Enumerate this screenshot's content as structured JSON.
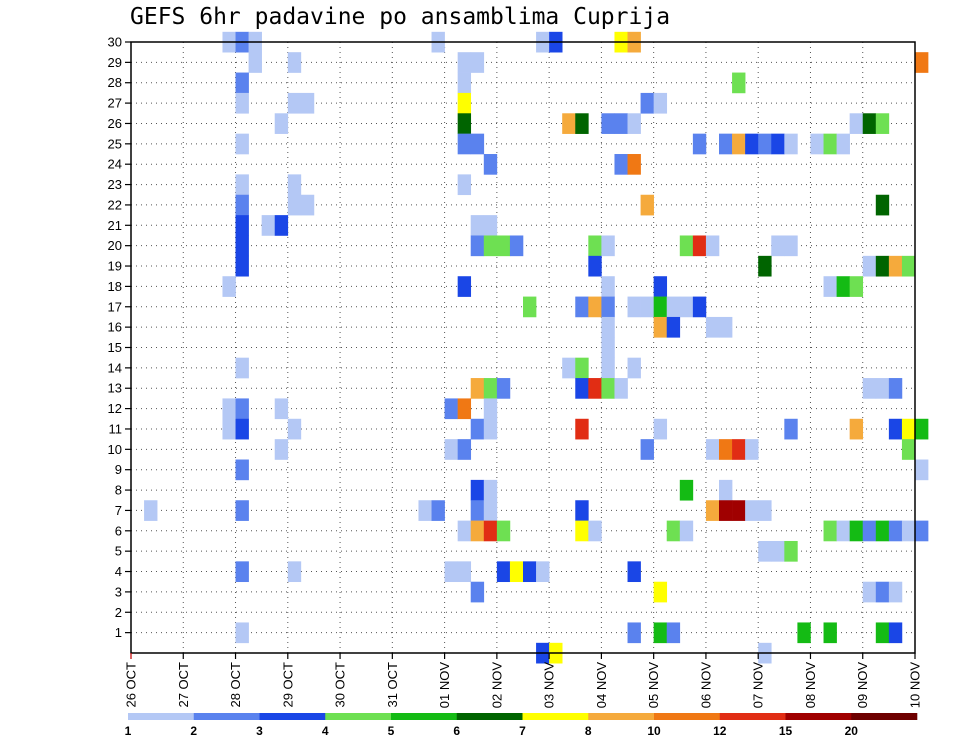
{
  "title": "GEFS 6hr padavine po ansamblima Cuprija",
  "chart_data": {
    "type": "heatmap",
    "title": "GEFS 6hr padavine po ansamblima Cuprija",
    "xlabel": "",
    "ylabel": "",
    "x_ticks": [
      "26 OCT",
      "27 OCT",
      "28 OCT",
      "29 OCT",
      "30 OCT",
      "31 OCT",
      "01 NOV",
      "02 NOV",
      "03 NOV",
      "04 NOV",
      "05 NOV",
      "06 NOV",
      "07 NOV",
      "08 NOV",
      "09 NOV",
      "10 NOV"
    ],
    "y_ticks": [
      "1",
      "2",
      "3",
      "4",
      "5",
      "6",
      "7",
      "8",
      "9",
      "10",
      "11",
      "12",
      "13",
      "14",
      "15",
      "16",
      "17",
      "18",
      "19",
      "20",
      "21",
      "22",
      "23",
      "24",
      "25",
      "26",
      "27",
      "28",
      "29",
      "30"
    ],
    "ylim": [
      0,
      30
    ],
    "colorbar": {
      "labels": [
        "1",
        "2",
        "3",
        "4",
        "5",
        "6",
        "7",
        "8",
        "10",
        "12",
        "15",
        "20"
      ],
      "colors": [
        "#b4c8f5",
        "#5a82ee",
        "#1a46e6",
        "#6ee052",
        "#14bb14",
        "#006400",
        "#ffff00",
        "#f5aa3c",
        "#f07814",
        "#e12d14",
        "#a00000",
        "#6e0000"
      ]
    },
    "cells": [
      [
        30,
        7,
        0
      ],
      [
        30,
        8,
        1
      ],
      [
        30,
        9,
        0
      ],
      [
        30,
        23,
        0
      ],
      [
        30,
        31,
        0
      ],
      [
        30,
        32,
        2
      ],
      [
        30,
        37,
        6
      ],
      [
        30,
        38,
        7
      ],
      [
        29,
        9,
        0
      ],
      [
        29,
        12,
        0
      ],
      [
        29,
        25,
        0
      ],
      [
        29,
        26,
        0
      ],
      [
        29,
        60,
        8
      ],
      [
        28,
        8,
        1
      ],
      [
        28,
        25,
        0
      ],
      [
        28,
        46,
        3
      ],
      [
        27,
        8,
        0
      ],
      [
        27,
        12,
        0
      ],
      [
        27,
        13,
        0
      ],
      [
        27,
        25,
        6
      ],
      [
        27,
        39,
        1
      ],
      [
        27,
        40,
        0
      ],
      [
        26,
        11,
        0
      ],
      [
        26,
        25,
        5
      ],
      [
        26,
        33,
        7
      ],
      [
        26,
        34,
        5
      ],
      [
        26,
        36,
        1
      ],
      [
        26,
        37,
        1
      ],
      [
        26,
        38,
        0
      ],
      [
        26,
        55,
        0
      ],
      [
        26,
        56,
        5
      ],
      [
        26,
        57,
        3
      ],
      [
        25,
        8,
        0
      ],
      [
        25,
        25,
        1
      ],
      [
        25,
        26,
        1
      ],
      [
        25,
        43,
        1
      ],
      [
        25,
        45,
        1
      ],
      [
        25,
        46,
        7
      ],
      [
        25,
        47,
        2
      ],
      [
        25,
        48,
        1
      ],
      [
        25,
        49,
        2
      ],
      [
        25,
        50,
        0
      ],
      [
        25,
        52,
        0
      ],
      [
        25,
        53,
        3
      ],
      [
        25,
        54,
        0
      ],
      [
        24,
        27,
        1
      ],
      [
        24,
        37,
        1
      ],
      [
        24,
        38,
        8
      ],
      [
        23,
        8,
        0
      ],
      [
        23,
        12,
        0
      ],
      [
        23,
        25,
        0
      ],
      [
        22,
        8,
        1
      ],
      [
        22,
        12,
        0
      ],
      [
        22,
        13,
        0
      ],
      [
        22,
        39,
        7
      ],
      [
        22,
        57,
        5
      ],
      [
        21,
        8,
        2
      ],
      [
        21,
        10,
        0
      ],
      [
        21,
        11,
        2
      ],
      [
        21,
        26,
        0
      ],
      [
        21,
        27,
        0
      ],
      [
        20,
        8,
        2
      ],
      [
        20,
        26,
        1
      ],
      [
        20,
        27,
        3
      ],
      [
        20,
        28,
        3
      ],
      [
        20,
        29,
        1
      ],
      [
        20,
        35,
        3
      ],
      [
        20,
        36,
        0
      ],
      [
        20,
        42,
        3
      ],
      [
        20,
        43,
        9
      ],
      [
        20,
        44,
        0
      ],
      [
        20,
        49,
        0
      ],
      [
        20,
        50,
        0
      ],
      [
        19,
        8,
        2
      ],
      [
        19,
        35,
        2
      ],
      [
        19,
        48,
        5
      ],
      [
        19,
        56,
        0
      ],
      [
        19,
        57,
        5
      ],
      [
        19,
        58,
        7
      ],
      [
        19,
        59,
        3
      ],
      [
        18,
        7,
        0
      ],
      [
        18,
        25,
        2
      ],
      [
        18,
        36,
        0
      ],
      [
        18,
        40,
        2
      ],
      [
        18,
        53,
        0
      ],
      [
        18,
        54,
        4
      ],
      [
        18,
        55,
        3
      ],
      [
        17,
        30,
        3
      ],
      [
        17,
        34,
        1
      ],
      [
        17,
        35,
        7
      ],
      [
        17,
        36,
        1
      ],
      [
        17,
        38,
        0
      ],
      [
        17,
        39,
        0
      ],
      [
        17,
        40,
        4
      ],
      [
        17,
        41,
        0
      ],
      [
        17,
        42,
        0
      ],
      [
        17,
        43,
        2
      ],
      [
        16,
        36,
        0
      ],
      [
        16,
        40,
        7
      ],
      [
        16,
        41,
        2
      ],
      [
        16,
        44,
        0
      ],
      [
        16,
        45,
        0
      ],
      [
        15,
        36,
        0
      ],
      [
        14,
        8,
        0
      ],
      [
        14,
        33,
        0
      ],
      [
        14,
        34,
        3
      ],
      [
        14,
        36,
        0
      ],
      [
        14,
        38,
        0
      ],
      [
        13,
        26,
        7
      ],
      [
        13,
        27,
        3
      ],
      [
        13,
        28,
        1
      ],
      [
        13,
        34,
        2
      ],
      [
        13,
        35,
        9
      ],
      [
        13,
        36,
        3
      ],
      [
        13,
        37,
        0
      ],
      [
        13,
        56,
        0
      ],
      [
        13,
        57,
        0
      ],
      [
        13,
        58,
        1
      ],
      [
        12,
        7,
        0
      ],
      [
        12,
        8,
        1
      ],
      [
        12,
        11,
        0
      ],
      [
        12,
        24,
        1
      ],
      [
        12,
        25,
        8
      ],
      [
        12,
        27,
        0
      ],
      [
        11,
        7,
        0
      ],
      [
        11,
        8,
        2
      ],
      [
        11,
        12,
        0
      ],
      [
        11,
        26,
        1
      ],
      [
        11,
        27,
        0
      ],
      [
        11,
        34,
        9
      ],
      [
        11,
        40,
        0
      ],
      [
        11,
        50,
        1
      ],
      [
        11,
        55,
        7
      ],
      [
        11,
        58,
        2
      ],
      [
        11,
        59,
        6
      ],
      [
        11,
        60,
        4
      ],
      [
        10,
        11,
        0
      ],
      [
        10,
        24,
        0
      ],
      [
        10,
        25,
        1
      ],
      [
        10,
        39,
        1
      ],
      [
        10,
        44,
        0
      ],
      [
        10,
        45,
        8
      ],
      [
        10,
        46,
        9
      ],
      [
        10,
        47,
        0
      ],
      [
        10,
        59,
        3
      ],
      [
        9,
        8,
        1
      ],
      [
        9,
        60,
        0
      ],
      [
        8,
        26,
        2
      ],
      [
        8,
        27,
        0
      ],
      [
        8,
        42,
        4
      ],
      [
        8,
        45,
        0
      ],
      [
        7,
        1,
        0
      ],
      [
        7,
        8,
        1
      ],
      [
        7,
        22,
        0
      ],
      [
        7,
        23,
        1
      ],
      [
        7,
        26,
        1
      ],
      [
        7,
        27,
        0
      ],
      [
        7,
        34,
        2
      ],
      [
        7,
        44,
        7
      ],
      [
        7,
        45,
        10
      ],
      [
        7,
        46,
        10
      ],
      [
        7,
        47,
        0
      ],
      [
        7,
        48,
        0
      ],
      [
        6,
        25,
        0
      ],
      [
        6,
        26,
        7
      ],
      [
        6,
        27,
        9
      ],
      [
        6,
        28,
        3
      ],
      [
        6,
        34,
        6
      ],
      [
        6,
        35,
        0
      ],
      [
        6,
        41,
        3
      ],
      [
        6,
        42,
        0
      ],
      [
        6,
        53,
        3
      ],
      [
        6,
        54,
        0
      ],
      [
        6,
        55,
        4
      ],
      [
        6,
        56,
        1
      ],
      [
        6,
        57,
        4
      ],
      [
        6,
        58,
        1
      ],
      [
        6,
        59,
        0
      ],
      [
        6,
        60,
        1
      ],
      [
        5,
        48,
        0
      ],
      [
        5,
        49,
        0
      ],
      [
        5,
        50,
        3
      ],
      [
        4,
        8,
        1
      ],
      [
        4,
        12,
        0
      ],
      [
        4,
        24,
        0
      ],
      [
        4,
        25,
        0
      ],
      [
        4,
        28,
        2
      ],
      [
        4,
        29,
        6
      ],
      [
        4,
        30,
        2
      ],
      [
        4,
        31,
        0
      ],
      [
        4,
        38,
        2
      ],
      [
        3,
        26,
        1
      ],
      [
        3,
        40,
        6
      ],
      [
        3,
        56,
        0
      ],
      [
        3,
        57,
        1
      ],
      [
        3,
        58,
        0
      ],
      [
        1,
        8,
        0
      ],
      [
        1,
        38,
        1
      ],
      [
        1,
        40,
        4
      ],
      [
        1,
        41,
        1
      ],
      [
        1,
        51,
        4
      ],
      [
        1,
        53,
        4
      ],
      [
        1,
        57,
        4
      ],
      [
        1,
        58,
        2
      ],
      [
        0,
        31,
        2
      ],
      [
        0,
        32,
        6
      ],
      [
        0,
        48,
        0
      ]
    ]
  }
}
